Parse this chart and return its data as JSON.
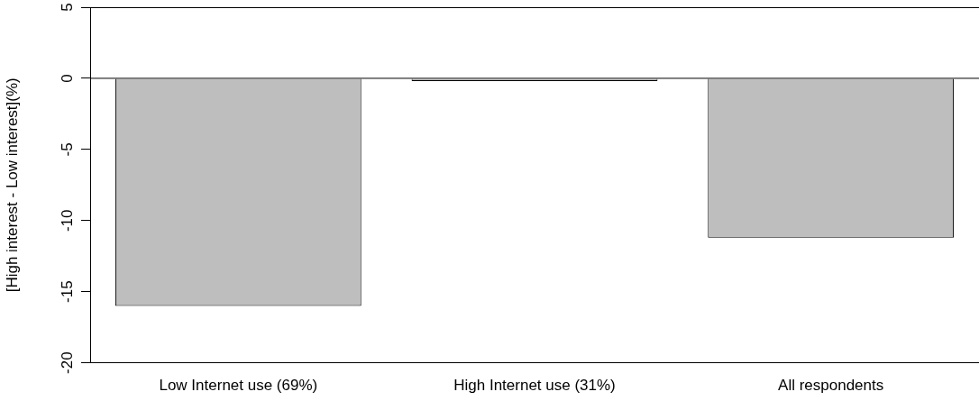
{
  "chart_data": {
    "type": "bar",
    "ylabel": "[High interest - Low interest](%)",
    "categories": [
      "Low Internet use (69%)",
      "High Internet use (31%)",
      "All respondents"
    ],
    "values": [
      -16,
      -0.2,
      -11.2
    ],
    "color": "#bebebe",
    "ylim": [
      -20,
      5
    ],
    "yticks": [
      -20,
      -15,
      -10,
      -5,
      0,
      5
    ],
    "ref_lines": [
      {
        "axis": "y",
        "value": 0,
        "color": "#000000"
      }
    ],
    "grid": false,
    "legend": false
  }
}
